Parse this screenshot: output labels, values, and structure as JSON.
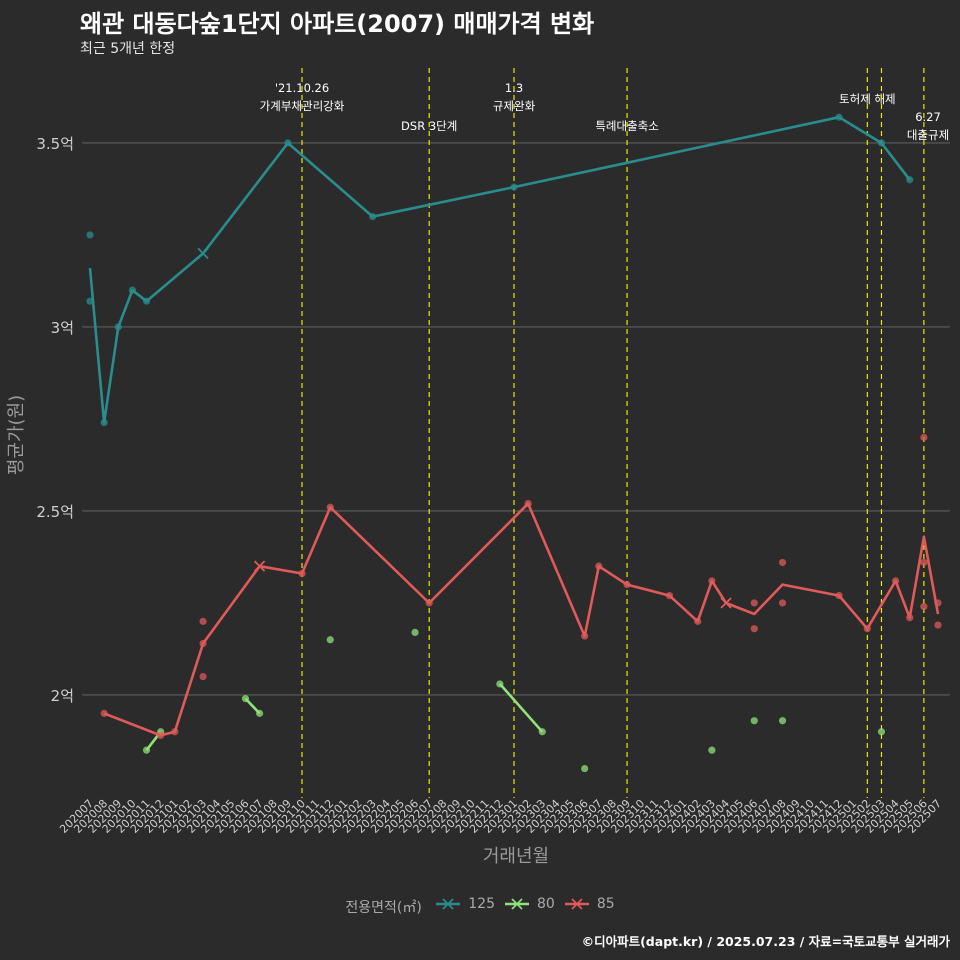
{
  "header": {
    "title": "왜관 대동다숲1단지 아파트(2007) 매매가격 변화",
    "subtitle": "최근 5개년 한정"
  },
  "caption": "©디아파트(dapt.kr) / 2025.07.23 / 자료=국토교통부 실거래가",
  "legend": {
    "title": "전용면적(㎡)",
    "items": [
      {
        "label": "125",
        "color": "#2a8d8d"
      },
      {
        "label": "80",
        "color": "#8fe37a"
      },
      {
        "label": "85",
        "color": "#e05a5a"
      }
    ]
  },
  "chart_data": {
    "type": "line",
    "title": "왜관 대동다숲1단지 아파트(2007) 매매가격 변화",
    "subtitle": "최근 5개년 한정",
    "xlabel": "거래년월",
    "ylabel": "평균가(원)",
    "ylim": [
      1.72,
      3.72
    ],
    "y_ticks": [
      {
        "value": 2.0,
        "label": "2억"
      },
      {
        "value": 2.5,
        "label": "2.5억"
      },
      {
        "value": 3.0,
        "label": "3억"
      },
      {
        "value": 3.5,
        "label": "3.5억"
      }
    ],
    "grid": true,
    "legend_position": "bottom",
    "x_categories": [
      "202007",
      "202008",
      "202009",
      "202010",
      "202011",
      "202012",
      "202101",
      "202102",
      "202103",
      "202104",
      "202105",
      "202106",
      "202107",
      "202108",
      "202109",
      "202110",
      "202111",
      "202112",
      "202201",
      "202202",
      "202203",
      "202204",
      "202205",
      "202206",
      "202207",
      "202208",
      "202209",
      "202210",
      "202211",
      "202212",
      "202301",
      "202302",
      "202303",
      "202304",
      "202305",
      "202306",
      "202307",
      "202308",
      "202309",
      "202310",
      "202311",
      "202312",
      "202401",
      "202402",
      "202403",
      "202404",
      "202405",
      "202406",
      "202407",
      "202408",
      "202409",
      "202410",
      "202411",
      "202412",
      "202501",
      "202502",
      "202503",
      "202504",
      "202505",
      "202506",
      "202507"
    ],
    "events": [
      {
        "x": "202110",
        "label": "'21.10.26\n가계부채관리강화"
      },
      {
        "x": "202207",
        "label": "DSR 3단계"
      },
      {
        "x": "202301",
        "label": "1.3\n규제완화"
      },
      {
        "x": "202309",
        "label": "특례대출축소"
      },
      {
        "x": "202502",
        "label": "토허제 해제"
      },
      {
        "x": "202503",
        "label": ""
      },
      {
        "x": "202506",
        "label": "6.27\n대출규제"
      }
    ],
    "series": [
      {
        "name": "125",
        "color": "#2a8d8d",
        "line": [
          [
            "202007",
            3.16
          ],
          [
            "202008",
            2.74
          ],
          [
            "202009",
            3.0
          ],
          [
            "202010",
            3.1
          ],
          [
            "202011",
            3.07
          ],
          [
            "202103",
            3.2
          ],
          [
            "202109",
            3.5
          ],
          [
            "202203",
            3.3
          ],
          [
            "202301",
            3.38
          ],
          [
            "202412",
            3.57
          ],
          [
            "202503",
            3.5
          ],
          [
            "202505",
            3.4
          ]
        ],
        "points": [
          [
            "202007",
            3.25
          ],
          [
            "202007",
            3.07
          ],
          [
            "202008",
            2.74
          ],
          [
            "202009",
            3.0
          ],
          [
            "202010",
            3.1
          ],
          [
            "202011",
            3.07
          ],
          [
            "202109",
            3.5
          ],
          [
            "202203",
            3.3
          ],
          [
            "202301",
            3.38
          ],
          [
            "202412",
            3.57
          ],
          [
            "202503",
            3.5
          ],
          [
            "202505",
            3.4
          ]
        ],
        "crosses": [
          [
            "202103",
            3.2
          ]
        ]
      },
      {
        "name": "80",
        "color": "#8fe37a",
        "segments": [
          [
            [
              "202011",
              1.85
            ],
            [
              "202012",
              1.9
            ]
          ],
          [
            [
              "202106",
              1.99
            ],
            [
              "202107",
              1.95
            ]
          ],
          [
            [
              "202212",
              2.03
            ],
            [
              "202303",
              1.9
            ]
          ]
        ],
        "points": [
          [
            "202011",
            1.85
          ],
          [
            "202012",
            1.9
          ],
          [
            "202106",
            1.99
          ],
          [
            "202107",
            1.95
          ],
          [
            "202112",
            2.15
          ],
          [
            "202206",
            2.17
          ],
          [
            "202212",
            2.03
          ],
          [
            "202303",
            1.9
          ],
          [
            "202306",
            1.8
          ],
          [
            "202403",
            1.85
          ],
          [
            "202406",
            1.93
          ],
          [
            "202408",
            1.93
          ],
          [
            "202503",
            1.9
          ]
        ]
      },
      {
        "name": "85",
        "color": "#e05a5a",
        "line": [
          [
            "202008",
            1.95
          ],
          [
            "202012",
            1.89
          ],
          [
            "202101",
            1.9
          ],
          [
            "202103",
            2.14
          ],
          [
            "202107",
            2.35
          ],
          [
            "202110",
            2.33
          ],
          [
            "202112",
            2.51
          ],
          [
            "202207",
            2.25
          ],
          [
            "202302",
            2.52
          ],
          [
            "202306",
            2.16
          ],
          [
            "202307",
            2.35
          ],
          [
            "202309",
            2.3
          ],
          [
            "202312",
            2.27
          ],
          [
            "202402",
            2.2
          ],
          [
            "202403",
            2.31
          ],
          [
            "202404",
            2.25
          ],
          [
            "202406",
            2.22
          ],
          [
            "202408",
            2.3
          ],
          [
            "202412",
            2.27
          ],
          [
            "202502",
            2.18
          ],
          [
            "202504",
            2.31
          ],
          [
            "202505",
            2.21
          ],
          [
            "202506",
            2.43
          ],
          [
            "202507",
            2.22
          ]
        ],
        "points": [
          [
            "202008",
            1.95
          ],
          [
            "202012",
            1.89
          ],
          [
            "202101",
            1.9
          ],
          [
            "202103",
            2.2
          ],
          [
            "202103",
            2.05
          ],
          [
            "202103",
            2.14
          ],
          [
            "202110",
            2.33
          ],
          [
            "202112",
            2.51
          ],
          [
            "202207",
            2.25
          ],
          [
            "202302",
            2.52
          ],
          [
            "202306",
            2.16
          ],
          [
            "202307",
            2.35
          ],
          [
            "202309",
            2.3
          ],
          [
            "202312",
            2.27
          ],
          [
            "202402",
            2.2
          ],
          [
            "202403",
            2.31
          ],
          [
            "202406",
            2.25
          ],
          [
            "202406",
            2.18
          ],
          [
            "202408",
            2.36
          ],
          [
            "202408",
            2.25
          ],
          [
            "202412",
            2.27
          ],
          [
            "202502",
            2.18
          ],
          [
            "202504",
            2.31
          ],
          [
            "202505",
            2.21
          ],
          [
            "202506",
            2.7
          ],
          [
            "202506",
            2.36
          ],
          [
            "202506",
            2.24
          ],
          [
            "202507",
            2.25
          ],
          [
            "202507",
            2.19
          ]
        ],
        "crosses": [
          [
            "202107",
            2.35
          ],
          [
            "202404",
            2.25
          ]
        ]
      }
    ]
  }
}
